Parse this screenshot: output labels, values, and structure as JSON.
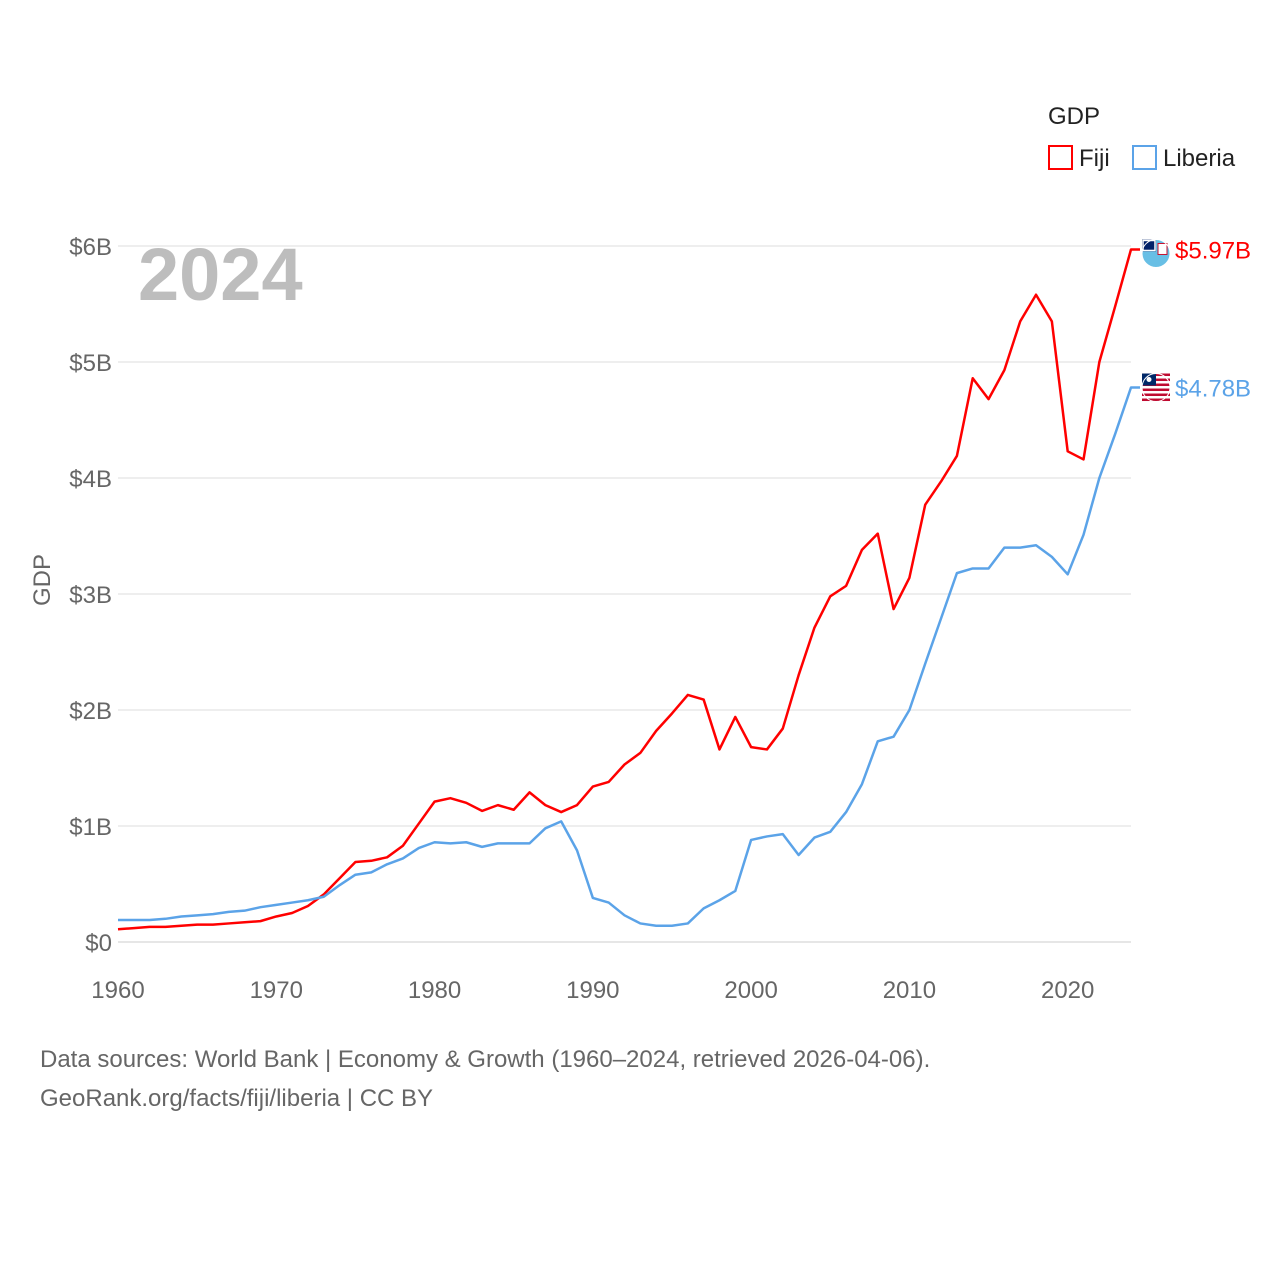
{
  "chart_data": {
    "type": "line",
    "title": "",
    "year_watermark": "2024",
    "ylabel": "GDP",
    "xlabel": "",
    "xlim": [
      1960,
      2024
    ],
    "ylim": [
      0,
      6000000000
    ],
    "grid": true,
    "x_ticks": [
      1960,
      1970,
      1980,
      1990,
      2000,
      2010,
      2020
    ],
    "x_tick_labels": [
      "1960",
      "1970",
      "1980",
      "1990",
      "2000",
      "2010",
      "2020"
    ],
    "y_ticks": [
      0,
      1000000000,
      2000000000,
      3000000000,
      4000000000,
      5000000000,
      6000000000
    ],
    "y_tick_labels": [
      "$0",
      "$1B",
      "$2B",
      "$3B",
      "$4B",
      "$5B",
      "$6B"
    ],
    "legend": {
      "title": "GDP",
      "placement": "top-right"
    },
    "x": [
      1960,
      1961,
      1962,
      1963,
      1964,
      1965,
      1966,
      1967,
      1968,
      1969,
      1970,
      1971,
      1972,
      1973,
      1974,
      1975,
      1976,
      1977,
      1978,
      1979,
      1980,
      1981,
      1982,
      1983,
      1984,
      1985,
      1986,
      1987,
      1988,
      1989,
      1990,
      1991,
      1992,
      1993,
      1994,
      1995,
      1996,
      1997,
      1998,
      1999,
      2000,
      2001,
      2002,
      2003,
      2004,
      2005,
      2006,
      2007,
      2008,
      2009,
      2010,
      2011,
      2012,
      2013,
      2014,
      2015,
      2016,
      2017,
      2018,
      2019,
      2020,
      2021,
      2022,
      2023,
      2024
    ],
    "series": [
      {
        "name": "Fiji",
        "color": "#ff0000",
        "end_label": "$5.97B",
        "flag": "fiji-flag",
        "values_billions": [
          0.11,
          0.12,
          0.13,
          0.13,
          0.14,
          0.15,
          0.15,
          0.16,
          0.17,
          0.18,
          0.22,
          0.25,
          0.31,
          0.41,
          0.55,
          0.69,
          0.7,
          0.73,
          0.83,
          1.02,
          1.21,
          1.24,
          1.2,
          1.13,
          1.18,
          1.14,
          1.29,
          1.18,
          1.12,
          1.18,
          1.34,
          1.38,
          1.53,
          1.63,
          1.82,
          1.97,
          2.13,
          2.09,
          1.66,
          1.94,
          1.68,
          1.66,
          1.84,
          2.3,
          2.71,
          2.98,
          3.07,
          3.38,
          3.52,
          2.87,
          3.14,
          3.77,
          3.97,
          4.19,
          4.86,
          4.68,
          4.93,
          5.35,
          5.58,
          5.35,
          4.23,
          4.16,
          5.0,
          5.48,
          5.97
        ]
      },
      {
        "name": "Liberia",
        "color": "#5ba3e8",
        "end_label": "$4.78B",
        "flag": "liberia-flag",
        "values_billions": [
          0.19,
          0.19,
          0.19,
          0.2,
          0.22,
          0.23,
          0.24,
          0.26,
          0.27,
          0.3,
          0.32,
          0.34,
          0.36,
          0.39,
          0.49,
          0.58,
          0.6,
          0.67,
          0.72,
          0.81,
          0.86,
          0.85,
          0.86,
          0.82,
          0.85,
          0.85,
          0.85,
          0.98,
          1.04,
          0.79,
          0.38,
          0.34,
          0.23,
          0.16,
          0.14,
          0.14,
          0.16,
          0.29,
          0.36,
          0.44,
          0.88,
          0.91,
          0.93,
          0.75,
          0.9,
          0.95,
          1.12,
          1.36,
          1.73,
          1.77,
          2.0,
          2.4,
          2.79,
          3.18,
          3.22,
          3.22,
          3.4,
          3.4,
          3.42,
          3.32,
          3.17,
          3.51,
          4.0,
          4.38,
          4.78
        ]
      }
    ]
  },
  "footer": {
    "line1": "Data sources: World Bank | Economy & Growth (1960–2024, retrieved 2026-04-06).",
    "line2": "GeoRank.org/facts/fiji/liberia | CC BY"
  }
}
